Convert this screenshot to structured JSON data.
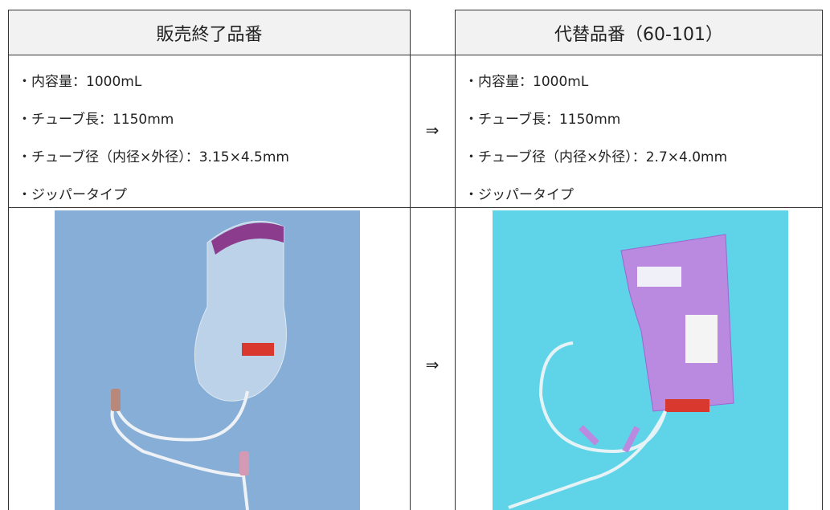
{
  "table": {
    "header": {
      "left": "販売終了品番",
      "right": "代替品番（60-101）"
    },
    "specs": {
      "left": [
        "・内容量：1000mL",
        "・チューブ長：1150mm",
        "・チューブ径（内径×外径）：3.15×4.5mm",
        "・ジッパータイプ"
      ],
      "arrow": "⇒",
      "right": [
        "・内容量：1000mL",
        "・チューブ長：1150mm",
        "・チューブ径（内径×外径）：2.7×4.0mm",
        "・ジッパータイプ"
      ]
    },
    "images": {
      "arrow": "⇒"
    }
  }
}
